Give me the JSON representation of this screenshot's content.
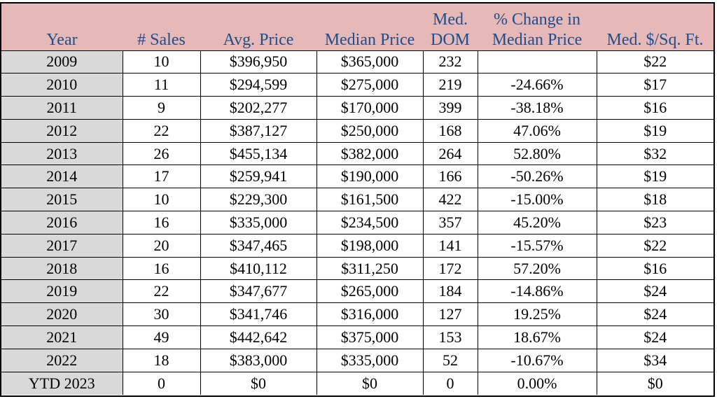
{
  "table": {
    "headers": {
      "year": "Year",
      "sales": "# Sales",
      "avg_price": "Avg. Price",
      "median_price": "Median Price",
      "dom_line1": "Med.",
      "dom_line2": "DOM",
      "pct_line1": "% Change in",
      "pct_line2": "Median Price",
      "sqft": "Med. $/Sq. Ft."
    },
    "rows": [
      [
        "2009",
        "10",
        "$396,950",
        "$365,000",
        "232",
        "",
        "$22"
      ],
      [
        "2010",
        "11",
        "$294,599",
        "$275,000",
        "219",
        "-24.66%",
        "$17"
      ],
      [
        "2011",
        "9",
        "$202,277",
        "$170,000",
        "399",
        "-38.18%",
        "$16"
      ],
      [
        "2012",
        "22",
        "$387,127",
        "$250,000",
        "168",
        "47.06%",
        "$19"
      ],
      [
        "2013",
        "26",
        "$455,134",
        "$382,000",
        "264",
        "52.80%",
        "$32"
      ],
      [
        "2014",
        "17",
        "$259,941",
        "$190,000",
        "166",
        "-50.26%",
        "$19"
      ],
      [
        "2015",
        "10",
        "$229,300",
        "$161,500",
        "422",
        "-15.00%",
        "$18"
      ],
      [
        "2016",
        "16",
        "$335,000",
        "$234,500",
        "357",
        "45.20%",
        "$23"
      ],
      [
        "2017",
        "20",
        "$347,465",
        "$198,000",
        "141",
        "-15.57%",
        "$22"
      ],
      [
        "2018",
        "16",
        "$410,112",
        "$311,250",
        "172",
        "57.20%",
        "$16"
      ],
      [
        "2019",
        "22",
        "$347,677",
        "$265,000",
        "184",
        "-14.86%",
        "$24"
      ],
      [
        "2020",
        "30",
        "$341,746",
        "$316,000",
        "127",
        "19.25%",
        "$24"
      ],
      [
        "2021",
        "49",
        "$442,642",
        "$375,000",
        "153",
        "18.67%",
        "$24"
      ],
      [
        "2022",
        "18",
        "$383,000",
        "$335,000",
        "52",
        "-10.67%",
        "$34"
      ],
      [
        "YTD 2023",
        "0",
        "$0",
        "$0",
        "0",
        "0.00%",
        "$0"
      ]
    ]
  },
  "colors": {
    "header_bg": "#e6b8b7",
    "header_text": "#1f4e8c",
    "year_column_bg": "#d9d9d9",
    "grid": "#000000"
  }
}
